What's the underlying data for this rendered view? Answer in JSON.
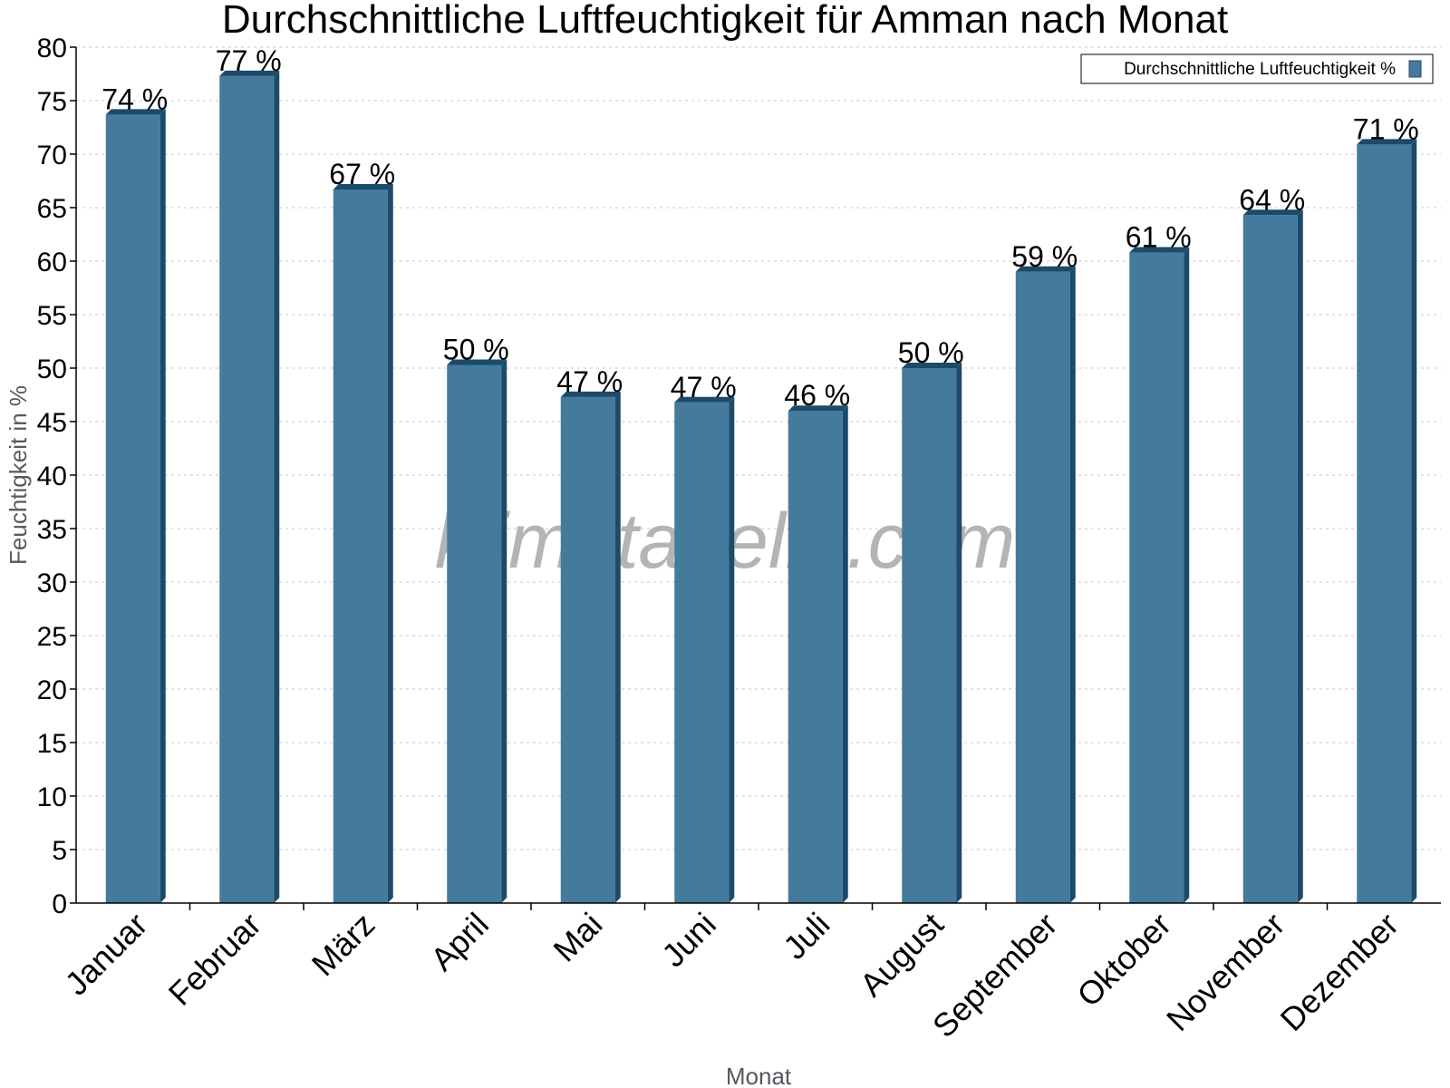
{
  "chart_data": {
    "type": "bar",
    "title": "Durchschnittliche Luftfeuchtigkeit für Amman nach Monat",
    "xlabel": "Monat",
    "ylabel": "Feuchtigkeit in %",
    "ylim": [
      0,
      80
    ],
    "yticks": [
      "0",
      "5",
      "10",
      "15",
      "20",
      "25",
      "30",
      "35",
      "40",
      "45",
      "50",
      "55",
      "60",
      "65",
      "70",
      "75",
      "80"
    ],
    "categories": [
      "Januar",
      "Februar",
      "März",
      "April",
      "Mai",
      "Juni",
      "Juli",
      "August",
      "September",
      "Oktober",
      "November",
      "Dezember"
    ],
    "series": [
      {
        "name": "Durchschnittliche Luftfeuchtigkeit %",
        "values": [
          73.7,
          77.3,
          66.7,
          50.3,
          47.3,
          46.8,
          46.0,
          50.0,
          59.0,
          60.8,
          64.3,
          70.9
        ],
        "labels": [
          "74 %",
          "77 %",
          "67 %",
          "50 %",
          "47 %",
          "47 %",
          "46 %",
          "50 %",
          "59 %",
          "61 %",
          "64 %",
          "71 %"
        ],
        "color": "#447a9c",
        "shade_color": "#1c4a6b"
      }
    ],
    "grid": true,
    "legend_position": "top-right",
    "watermark": "klimatabelle.com"
  }
}
